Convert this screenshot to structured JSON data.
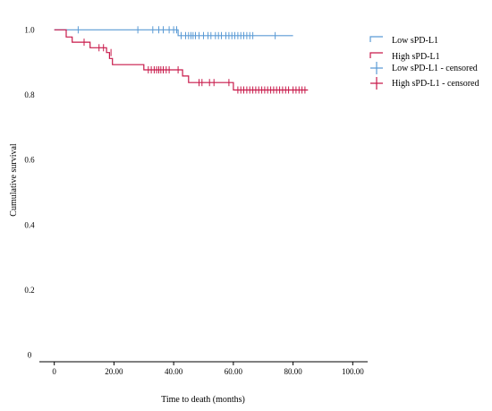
{
  "chart_data": {
    "type": "line",
    "title": "",
    "xlabel": "Time to death (months)",
    "ylabel": "Cumulative survival",
    "xlim": [
      -5,
      105
    ],
    "ylim": [
      -0.02,
      1.02
    ],
    "x_ticks": [
      {
        "value": 0,
        "label": "0"
      },
      {
        "value": 20,
        "label": "20.00"
      },
      {
        "value": 40,
        "label": "40.00"
      },
      {
        "value": 60,
        "label": "60.00"
      },
      {
        "value": 80,
        "label": "80.00"
      },
      {
        "value": 100,
        "label": "100.00"
      }
    ],
    "y_ticks": [
      {
        "value": 0,
        "label": "0"
      },
      {
        "value": 0.2,
        "label": "0.2"
      },
      {
        "value": 0.4,
        "label": "0.4"
      },
      {
        "value": 0.6,
        "label": "0.6"
      },
      {
        "value": 0.8,
        "label": "0.8"
      },
      {
        "value": 1.0,
        "label": "1.0"
      }
    ],
    "grid": false,
    "legend_position": "top-right",
    "series": [
      {
        "name": "Low sPD-L1",
        "color": "#5b9bd5",
        "steps": [
          [
            0,
            1.0
          ],
          [
            41.5,
            1.0
          ],
          [
            41.5,
            0.982
          ],
          [
            80,
            0.982
          ]
        ],
        "censored": [
          {
            "x": 8,
            "y": 1.0
          },
          {
            "x": 28,
            "y": 1.0
          },
          {
            "x": 33,
            "y": 1.0
          },
          {
            "x": 35,
            "y": 1.0
          },
          {
            "x": 36.5,
            "y": 1.0
          },
          {
            "x": 38.5,
            "y": 1.0
          },
          {
            "x": 40,
            "y": 1.0
          },
          {
            "x": 41,
            "y": 1.0
          },
          {
            "x": 42.5,
            "y": 0.982
          },
          {
            "x": 44,
            "y": 0.982
          },
          {
            "x": 45,
            "y": 0.982
          },
          {
            "x": 45.8,
            "y": 0.982
          },
          {
            "x": 46.5,
            "y": 0.982
          },
          {
            "x": 47.3,
            "y": 0.982
          },
          {
            "x": 48.5,
            "y": 0.982
          },
          {
            "x": 50,
            "y": 0.982
          },
          {
            "x": 51.5,
            "y": 0.982
          },
          {
            "x": 52.5,
            "y": 0.982
          },
          {
            "x": 54,
            "y": 0.982
          },
          {
            "x": 55,
            "y": 0.982
          },
          {
            "x": 56,
            "y": 0.982
          },
          {
            "x": 57.5,
            "y": 0.982
          },
          {
            "x": 58.5,
            "y": 0.982
          },
          {
            "x": 59.5,
            "y": 0.982
          },
          {
            "x": 60.5,
            "y": 0.982
          },
          {
            "x": 61.5,
            "y": 0.982
          },
          {
            "x": 62.5,
            "y": 0.982
          },
          {
            "x": 63.5,
            "y": 0.982
          },
          {
            "x": 64.5,
            "y": 0.982
          },
          {
            "x": 65.5,
            "y": 0.982
          },
          {
            "x": 66.5,
            "y": 0.982
          },
          {
            "x": 74,
            "y": 0.982
          }
        ]
      },
      {
        "name": "High sPD-L1",
        "color": "#c8194a",
        "steps": [
          [
            0,
            1.0
          ],
          [
            4,
            1.0
          ],
          [
            4,
            0.978
          ],
          [
            6,
            0.978
          ],
          [
            6,
            0.962
          ],
          [
            12,
            0.962
          ],
          [
            12,
            0.945
          ],
          [
            17.5,
            0.945
          ],
          [
            17.5,
            0.93
          ],
          [
            18.5,
            0.93
          ],
          [
            18.5,
            0.912
          ],
          [
            19.5,
            0.912
          ],
          [
            19.5,
            0.893
          ],
          [
            30,
            0.893
          ],
          [
            30,
            0.877
          ],
          [
            43,
            0.877
          ],
          [
            43,
            0.858
          ],
          [
            45,
            0.858
          ],
          [
            45,
            0.838
          ],
          [
            60,
            0.838
          ],
          [
            60,
            0.815
          ],
          [
            85,
            0.815
          ]
        ],
        "censored": [
          {
            "x": 10,
            "y": 0.962
          },
          {
            "x": 15,
            "y": 0.945
          },
          {
            "x": 16.5,
            "y": 0.945
          },
          {
            "x": 19,
            "y": 0.93
          },
          {
            "x": 31.5,
            "y": 0.877
          },
          {
            "x": 32.5,
            "y": 0.877
          },
          {
            "x": 33.5,
            "y": 0.877
          },
          {
            "x": 34.3,
            "y": 0.877
          },
          {
            "x": 35,
            "y": 0.877
          },
          {
            "x": 35.7,
            "y": 0.877
          },
          {
            "x": 36.5,
            "y": 0.877
          },
          {
            "x": 37.5,
            "y": 0.877
          },
          {
            "x": 38.5,
            "y": 0.877
          },
          {
            "x": 41.5,
            "y": 0.877
          },
          {
            "x": 48.5,
            "y": 0.838
          },
          {
            "x": 49.5,
            "y": 0.838
          },
          {
            "x": 52,
            "y": 0.838
          },
          {
            "x": 53.5,
            "y": 0.838
          },
          {
            "x": 58.5,
            "y": 0.838
          },
          {
            "x": 61.5,
            "y": 0.815
          },
          {
            "x": 62.5,
            "y": 0.815
          },
          {
            "x": 63.5,
            "y": 0.815
          },
          {
            "x": 64.5,
            "y": 0.815
          },
          {
            "x": 65.5,
            "y": 0.815
          },
          {
            "x": 66.5,
            "y": 0.815
          },
          {
            "x": 67.5,
            "y": 0.815
          },
          {
            "x": 68.5,
            "y": 0.815
          },
          {
            "x": 69.5,
            "y": 0.815
          },
          {
            "x": 70.5,
            "y": 0.815
          },
          {
            "x": 71.5,
            "y": 0.815
          },
          {
            "x": 72.5,
            "y": 0.815
          },
          {
            "x": 73.5,
            "y": 0.815
          },
          {
            "x": 74.5,
            "y": 0.815
          },
          {
            "x": 75.5,
            "y": 0.815
          },
          {
            "x": 76.5,
            "y": 0.815
          },
          {
            "x": 77.5,
            "y": 0.815
          },
          {
            "x": 78.5,
            "y": 0.815
          },
          {
            "x": 80,
            "y": 0.815
          },
          {
            "x": 81,
            "y": 0.815
          },
          {
            "x": 82,
            "y": 0.815
          },
          {
            "x": 83,
            "y": 0.815
          },
          {
            "x": 84,
            "y": 0.815
          }
        ]
      }
    ],
    "legend": [
      {
        "label": "Low sPD-L1",
        "color": "#5b9bd5",
        "symbol": "step"
      },
      {
        "label": "High sPD-L1",
        "color": "#c8194a",
        "symbol": "step"
      },
      {
        "label": "Low sPD-L1 - censored",
        "color": "#5b9bd5",
        "symbol": "cross"
      },
      {
        "label": "High sPD-L1 - censored",
        "color": "#c8194a",
        "symbol": "cross"
      }
    ]
  }
}
